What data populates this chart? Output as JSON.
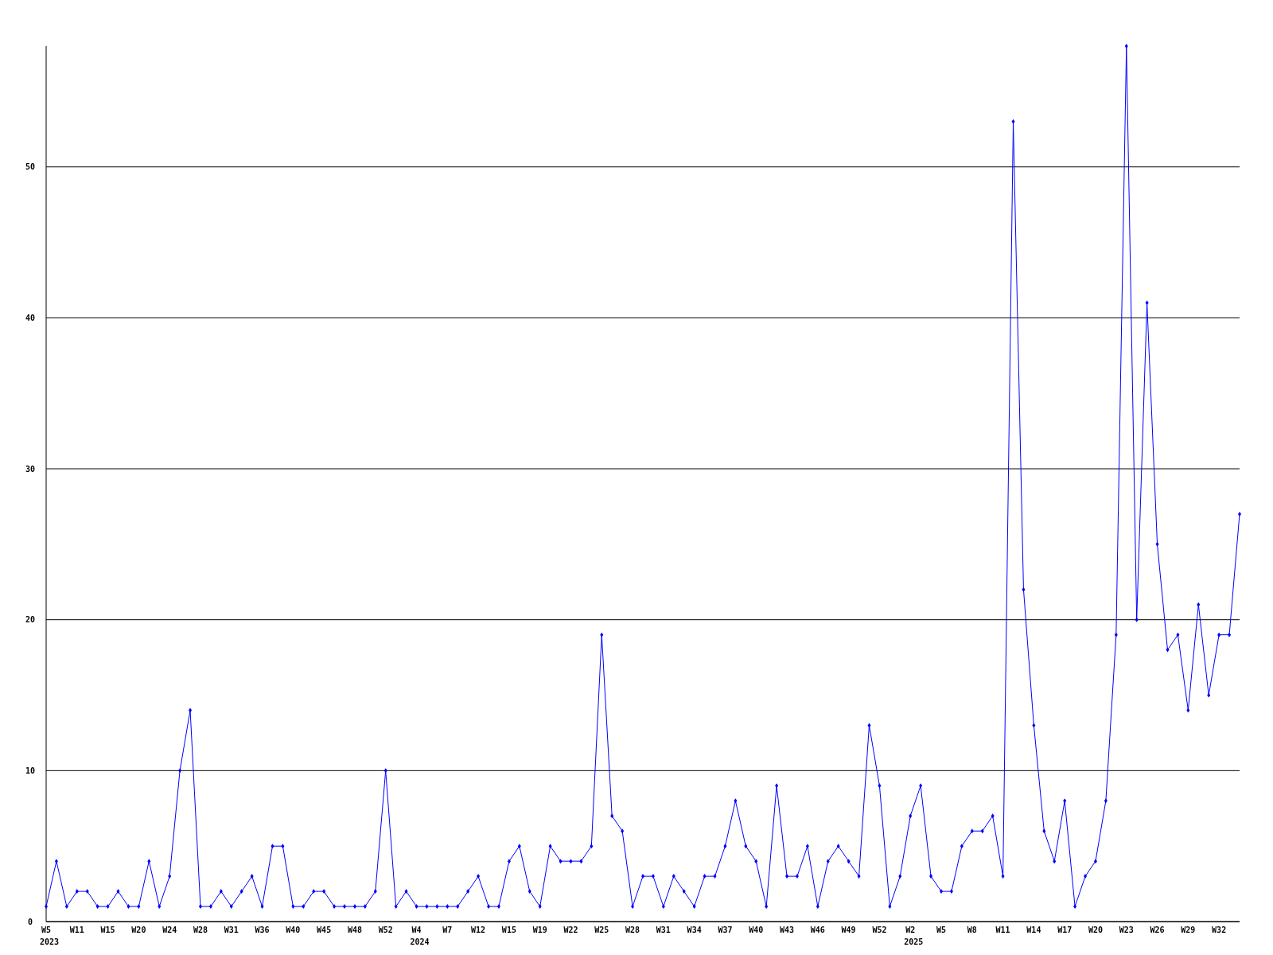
{
  "chart_data": {
    "type": "line",
    "categories": [
      "W5\n2023",
      null,
      null,
      "W11",
      null,
      null,
      "W15",
      null,
      null,
      "W20",
      null,
      null,
      "W24",
      null,
      null,
      "W28",
      null,
      null,
      "W31",
      null,
      null,
      "W36",
      null,
      null,
      "W40",
      null,
      null,
      "W45",
      null,
      null,
      "W48",
      null,
      null,
      "W52",
      null,
      null,
      "W4\n2024",
      null,
      null,
      "W7",
      null,
      null,
      "W12",
      null,
      null,
      "W15",
      null,
      null,
      "W19",
      null,
      null,
      "W22",
      null,
      null,
      "W25",
      null,
      null,
      "W28",
      null,
      null,
      "W31",
      null,
      null,
      "W34",
      null,
      null,
      "W37",
      null,
      null,
      "W40",
      null,
      null,
      "W43",
      null,
      null,
      "W46",
      null,
      null,
      "W49",
      null,
      null,
      "W52",
      null,
      null,
      "W2\n2025",
      null,
      null,
      "W5",
      null,
      null,
      "W8",
      null,
      null,
      "W11",
      null,
      null,
      "W14",
      null,
      null,
      "W17",
      null,
      null,
      "W20",
      null,
      null,
      "W23",
      null,
      null,
      "W26",
      null,
      null,
      "W29",
      null,
      null,
      "W32",
      null,
      null
    ],
    "series": [
      {
        "color": "#0000ff",
        "values": [
          1,
          4,
          1,
          2,
          2,
          1,
          1,
          2,
          1,
          1,
          4,
          1,
          3,
          10,
          14,
          1,
          1,
          2,
          1,
          2,
          3,
          1,
          5,
          5,
          1,
          1,
          2,
          2,
          1,
          1,
          1,
          1,
          2,
          10,
          1,
          2,
          1,
          1,
          1,
          1,
          1,
          2,
          3,
          1,
          1,
          4,
          5,
          2,
          1,
          5,
          4,
          4,
          4,
          5,
          19,
          7,
          6,
          1,
          3,
          3,
          1,
          3,
          2,
          1,
          3,
          3,
          5,
          8,
          5,
          4,
          1,
          9,
          3,
          3,
          5,
          1,
          4,
          5,
          4,
          3,
          13,
          9,
          1,
          3,
          7,
          9,
          3,
          2,
          2,
          5,
          6,
          6,
          7,
          3,
          53,
          22,
          13,
          6,
          4,
          8,
          1,
          3,
          4,
          8,
          19,
          58,
          20,
          41,
          25,
          18,
          19,
          14,
          21,
          15,
          19,
          19,
          27
        ]
      }
    ],
    "ylim": [
      0,
      58
    ],
    "yticks": [
      0,
      10,
      20,
      30,
      40,
      50
    ],
    "grid": "y",
    "marker": "diamond"
  }
}
